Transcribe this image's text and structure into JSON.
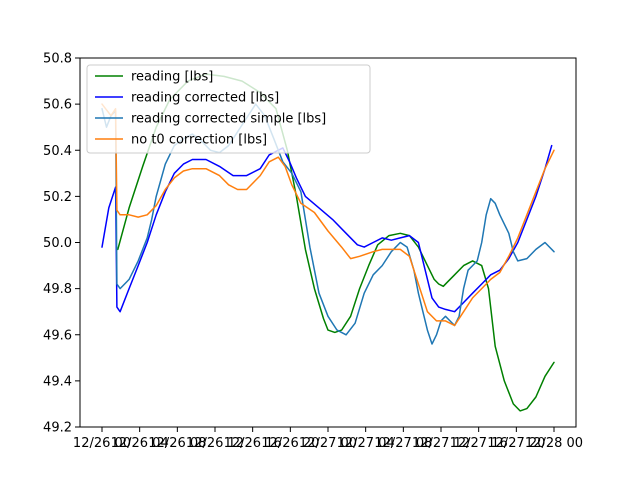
{
  "chart_data": {
    "type": "line",
    "title": "",
    "xlabel": "",
    "ylabel": "",
    "xlim": [
      0,
      1
    ],
    "ylim": [
      49.2,
      50.8
    ],
    "legend_position": "upper-left",
    "x_ticks": [
      {
        "label": "12/26 00",
        "pos": 0.0
      },
      {
        "label": "12/26 04",
        "pos": 0.0833
      },
      {
        "label": "12/26 08",
        "pos": 0.1667
      },
      {
        "label": "12/26 12",
        "pos": 0.25
      },
      {
        "label": "12/26 16",
        "pos": 0.3333
      },
      {
        "label": "12/26 20",
        "pos": 0.4167
      },
      {
        "label": "12/27 00",
        "pos": 0.5
      },
      {
        "label": "12/27 04",
        "pos": 0.5833
      },
      {
        "label": "12/27 08",
        "pos": 0.6667
      },
      {
        "label": "12/27 12",
        "pos": 0.75
      },
      {
        "label": "12/27 16",
        "pos": 0.8333
      },
      {
        "label": "12/27 20",
        "pos": 0.9167
      },
      {
        "label": "12/28 00",
        "pos": 1.0
      }
    ],
    "y_ticks": [
      "49.2",
      "49.4",
      "49.6",
      "49.8",
      "50.0",
      "50.2",
      "50.4",
      "50.6",
      "50.8"
    ],
    "y_tick_values": [
      49.2,
      49.4,
      49.6,
      49.8,
      50.0,
      50.2,
      50.4,
      50.6,
      50.8
    ],
    "series": [
      {
        "name": "reading [lbs]",
        "color": "#008000",
        "points": [
          [
            0.035,
            49.97
          ],
          [
            0.06,
            50.15
          ],
          [
            0.09,
            50.33
          ],
          [
            0.12,
            50.5
          ],
          [
            0.15,
            50.62
          ],
          [
            0.19,
            50.7
          ],
          [
            0.23,
            50.73
          ],
          [
            0.27,
            50.72
          ],
          [
            0.31,
            50.7
          ],
          [
            0.35,
            50.65
          ],
          [
            0.385,
            50.58
          ],
          [
            0.41,
            50.4
          ],
          [
            0.43,
            50.2
          ],
          [
            0.45,
            49.97
          ],
          [
            0.47,
            49.8
          ],
          [
            0.49,
            49.67
          ],
          [
            0.5,
            49.62
          ],
          [
            0.515,
            49.61
          ],
          [
            0.53,
            49.62
          ],
          [
            0.55,
            49.68
          ],
          [
            0.57,
            49.8
          ],
          [
            0.59,
            49.9
          ],
          [
            0.61,
            49.99
          ],
          [
            0.635,
            50.03
          ],
          [
            0.66,
            50.04
          ],
          [
            0.68,
            50.03
          ],
          [
            0.7,
            49.98
          ],
          [
            0.72,
            49.9
          ],
          [
            0.735,
            49.84
          ],
          [
            0.745,
            49.82
          ],
          [
            0.755,
            49.81
          ],
          [
            0.765,
            49.83
          ],
          [
            0.78,
            49.86
          ],
          [
            0.8,
            49.9
          ],
          [
            0.82,
            49.92
          ],
          [
            0.84,
            49.9
          ],
          [
            0.855,
            49.8
          ],
          [
            0.87,
            49.55
          ],
          [
            0.89,
            49.4
          ],
          [
            0.91,
            49.3
          ],
          [
            0.925,
            49.27
          ],
          [
            0.94,
            49.28
          ],
          [
            0.96,
            49.33
          ],
          [
            0.98,
            49.42
          ],
          [
            1.0,
            49.48
          ]
        ]
      },
      {
        "name": "reading corrected [lbs]",
        "color": "#0000ff",
        "points": [
          [
            0.0,
            49.98
          ],
          [
            0.015,
            50.15
          ],
          [
            0.03,
            50.24
          ],
          [
            0.033,
            49.72
          ],
          [
            0.04,
            49.7
          ],
          [
            0.06,
            49.8
          ],
          [
            0.08,
            49.9
          ],
          [
            0.1,
            50.0
          ],
          [
            0.12,
            50.12
          ],
          [
            0.14,
            50.22
          ],
          [
            0.16,
            50.3
          ],
          [
            0.18,
            50.34
          ],
          [
            0.2,
            50.36
          ],
          [
            0.23,
            50.36
          ],
          [
            0.26,
            50.33
          ],
          [
            0.29,
            50.29
          ],
          [
            0.32,
            50.29
          ],
          [
            0.35,
            50.32
          ],
          [
            0.37,
            50.38
          ],
          [
            0.4,
            50.41
          ],
          [
            0.415,
            50.35
          ],
          [
            0.43,
            50.28
          ],
          [
            0.45,
            50.2
          ],
          [
            0.48,
            50.15
          ],
          [
            0.51,
            50.1
          ],
          [
            0.54,
            50.04
          ],
          [
            0.565,
            49.99
          ],
          [
            0.58,
            49.98
          ],
          [
            0.6,
            50.0
          ],
          [
            0.62,
            50.02
          ],
          [
            0.64,
            50.01
          ],
          [
            0.66,
            50.02
          ],
          [
            0.68,
            50.03
          ],
          [
            0.7,
            50.0
          ],
          [
            0.715,
            49.88
          ],
          [
            0.73,
            49.76
          ],
          [
            0.745,
            49.72
          ],
          [
            0.76,
            49.71
          ],
          [
            0.78,
            49.7
          ],
          [
            0.8,
            49.74
          ],
          [
            0.82,
            49.78
          ],
          [
            0.84,
            49.82
          ],
          [
            0.86,
            49.86
          ],
          [
            0.88,
            49.88
          ],
          [
            0.9,
            49.93
          ],
          [
            0.92,
            50.0
          ],
          [
            0.94,
            50.1
          ],
          [
            0.96,
            50.2
          ],
          [
            0.98,
            50.32
          ],
          [
            0.995,
            50.42
          ]
        ]
      },
      {
        "name": "reading corrected simple [lbs]",
        "color": "#1f77b4",
        "points": [
          [
            0.0,
            50.58
          ],
          [
            0.01,
            50.5
          ],
          [
            0.02,
            50.55
          ],
          [
            0.03,
            50.57
          ],
          [
            0.033,
            49.82
          ],
          [
            0.04,
            49.8
          ],
          [
            0.06,
            49.84
          ],
          [
            0.08,
            49.92
          ],
          [
            0.1,
            50.02
          ],
          [
            0.11,
            50.1
          ],
          [
            0.12,
            50.2
          ],
          [
            0.14,
            50.34
          ],
          [
            0.16,
            50.42
          ],
          [
            0.18,
            50.45
          ],
          [
            0.2,
            50.47
          ],
          [
            0.22,
            50.44
          ],
          [
            0.24,
            50.4
          ],
          [
            0.26,
            50.39
          ],
          [
            0.28,
            50.42
          ],
          [
            0.3,
            50.48
          ],
          [
            0.32,
            50.54
          ],
          [
            0.34,
            50.6
          ],
          [
            0.36,
            50.55
          ],
          [
            0.38,
            50.45
          ],
          [
            0.4,
            50.35
          ],
          [
            0.42,
            50.3
          ],
          [
            0.44,
            50.22
          ],
          [
            0.46,
            49.98
          ],
          [
            0.48,
            49.78
          ],
          [
            0.5,
            49.68
          ],
          [
            0.52,
            49.62
          ],
          [
            0.54,
            49.6
          ],
          [
            0.56,
            49.65
          ],
          [
            0.58,
            49.78
          ],
          [
            0.6,
            49.86
          ],
          [
            0.62,
            49.9
          ],
          [
            0.64,
            49.96
          ],
          [
            0.66,
            50.0
          ],
          [
            0.675,
            49.98
          ],
          [
            0.69,
            49.88
          ],
          [
            0.7,
            49.78
          ],
          [
            0.71,
            49.7
          ],
          [
            0.72,
            49.62
          ],
          [
            0.73,
            49.56
          ],
          [
            0.74,
            49.6
          ],
          [
            0.75,
            49.66
          ],
          [
            0.76,
            49.68
          ],
          [
            0.77,
            49.66
          ],
          [
            0.78,
            49.64
          ],
          [
            0.79,
            49.68
          ],
          [
            0.8,
            49.8
          ],
          [
            0.81,
            49.88
          ],
          [
            0.82,
            49.9
          ],
          [
            0.83,
            49.92
          ],
          [
            0.84,
            50.0
          ],
          [
            0.85,
            50.12
          ],
          [
            0.86,
            50.19
          ],
          [
            0.87,
            50.17
          ],
          [
            0.88,
            50.12
          ],
          [
            0.9,
            50.04
          ],
          [
            0.91,
            49.96
          ],
          [
            0.92,
            49.92
          ],
          [
            0.94,
            49.93
          ],
          [
            0.96,
            49.97
          ],
          [
            0.98,
            50.0
          ],
          [
            1.0,
            49.96
          ]
        ]
      },
      {
        "name": "no t0 correction [lbs]",
        "color": "#ff7f0e",
        "points": [
          [
            0.0,
            50.6
          ],
          [
            0.02,
            50.55
          ],
          [
            0.03,
            50.58
          ],
          [
            0.033,
            50.14
          ],
          [
            0.04,
            50.12
          ],
          [
            0.06,
            50.12
          ],
          [
            0.08,
            50.11
          ],
          [
            0.1,
            50.12
          ],
          [
            0.12,
            50.16
          ],
          [
            0.14,
            50.23
          ],
          [
            0.16,
            50.28
          ],
          [
            0.18,
            50.31
          ],
          [
            0.2,
            50.32
          ],
          [
            0.23,
            50.32
          ],
          [
            0.26,
            50.29
          ],
          [
            0.28,
            50.25
          ],
          [
            0.3,
            50.23
          ],
          [
            0.32,
            50.23
          ],
          [
            0.35,
            50.29
          ],
          [
            0.37,
            50.35
          ],
          [
            0.39,
            50.37
          ],
          [
            0.405,
            50.33
          ],
          [
            0.42,
            50.25
          ],
          [
            0.44,
            50.17
          ],
          [
            0.47,
            50.13
          ],
          [
            0.5,
            50.05
          ],
          [
            0.53,
            49.98
          ],
          [
            0.55,
            49.93
          ],
          [
            0.57,
            49.94
          ],
          [
            0.6,
            49.96
          ],
          [
            0.62,
            49.97
          ],
          [
            0.64,
            49.97
          ],
          [
            0.66,
            49.97
          ],
          [
            0.68,
            49.94
          ],
          [
            0.7,
            49.82
          ],
          [
            0.72,
            49.7
          ],
          [
            0.74,
            49.66
          ],
          [
            0.76,
            49.66
          ],
          [
            0.78,
            49.64
          ],
          [
            0.8,
            49.7
          ],
          [
            0.82,
            49.76
          ],
          [
            0.84,
            49.8
          ],
          [
            0.86,
            49.84
          ],
          [
            0.88,
            49.87
          ],
          [
            0.9,
            49.94
          ],
          [
            0.92,
            50.02
          ],
          [
            0.94,
            50.12
          ],
          [
            0.96,
            50.22
          ],
          [
            0.98,
            50.32
          ],
          [
            1.0,
            50.4
          ]
        ]
      }
    ]
  }
}
